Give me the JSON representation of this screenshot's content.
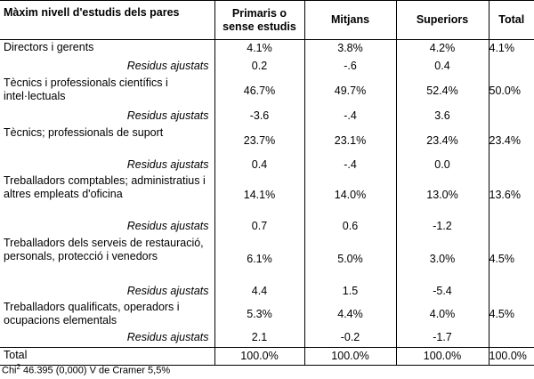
{
  "headers": {
    "col0": "Màxim nivell d'estudis dels pares",
    "col1": "Primaris o sense estudis",
    "col2": "Mitjans",
    "col3": "Superiors",
    "col4": "Total"
  },
  "rows": [
    {
      "label": "Directors i gerents",
      "v1": "4.1%",
      "v2": "3.8%",
      "v3": "4.2%",
      "total": "4.1%",
      "h": 20
    },
    {
      "label": "Residus ajustats",
      "v1": "0.2",
      "v2": "-.6",
      "v3": "0.4",
      "total": "",
      "h": 20,
      "resid": true
    },
    {
      "label": "Tècnics i professionals científics i intel·lectuals",
      "v1": "46.7%",
      "v2": "49.7%",
      "v3": "52.4%",
      "total": "50.0%",
      "h": 35
    },
    {
      "label": "Residus ajustats",
      "v1": "-3.6",
      "v2": "-.4",
      "v3": "3.6",
      "total": "",
      "h": 21,
      "resid": true
    },
    {
      "label": "Tècnics; professionals de suport",
      "v1": "23.7%",
      "v2": "23.1%",
      "v3": "23.4%",
      "total": "23.4%",
      "h": 35
    },
    {
      "label": "Residus ajustats",
      "v1": "0.4",
      "v2": "-.4",
      "v3": "0.0",
      "total": "",
      "h": 19,
      "resid": true
    },
    {
      "label": "Treballadors comptables; administratius i altres empleats d'oficina",
      "v1": "14.1%",
      "v2": "14.0%",
      "v3": "13.0%",
      "total": "13.6%",
      "h": 49
    },
    {
      "label": "Residus ajustats",
      "v1": "0.7",
      "v2": "0.6",
      "v3": "-1.2",
      "total": "",
      "h": 21,
      "resid": true
    },
    {
      "label": "Treballadors dels serveis de restauració, personals, protecció i venedors",
      "v1": "6.1%",
      "v2": "5.0%",
      "v3": "3.0%",
      "total": "4.5%",
      "h": 53
    },
    {
      "label": "Residus ajustats",
      "v1": "4.4",
      "v2": "1.5",
      "v3": "-5.4",
      "total": "",
      "h": 19,
      "resid": true
    },
    {
      "label": "Treballadors qualificats, operadors i ocupacions elementals",
      "v1": "5.3%",
      "v2": "4.4%",
      "v3": "4.0%",
      "total": "4.5%",
      "h": 33
    },
    {
      "label": "Residus ajustats",
      "v1": "2.1",
      "v2": "-0.2",
      "v3": "-1.7",
      "total": "",
      "h": 21,
      "resid": true
    }
  ],
  "total_row": {
    "label": "Total",
    "v1": "100.0%",
    "v2": "100.0%",
    "v3": "100.0%",
    "total": "100.0%"
  },
  "footnote": {
    "prefix": "Chi",
    "sup": "2",
    "text": " 46.395 (0,000) V de Cramer 5,5%"
  }
}
